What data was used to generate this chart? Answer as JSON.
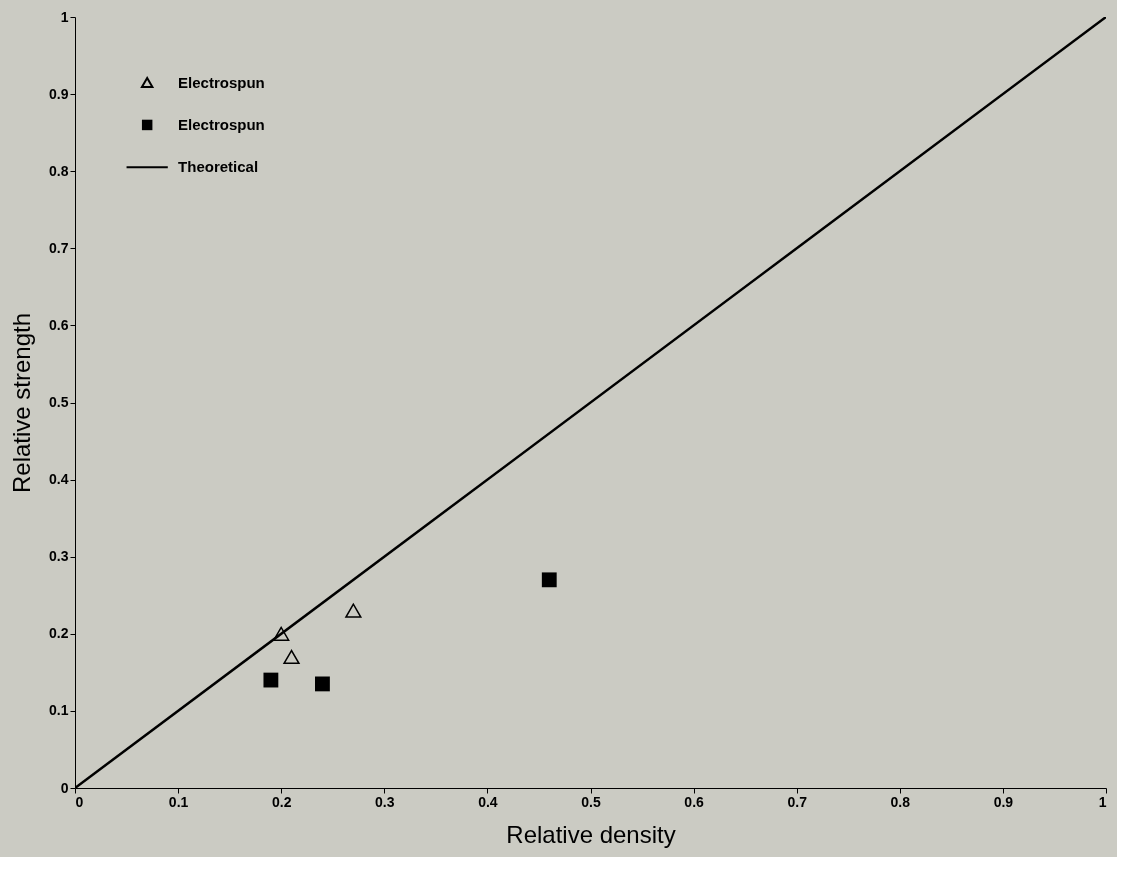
{
  "chart_data": {
    "type": "scatter",
    "xlabel": "Relative density",
    "ylabel": "Relative strength",
    "xlim": [
      0,
      1
    ],
    "ylim": [
      0,
      1
    ],
    "xticks": [
      0,
      0.1,
      0.2,
      0.3,
      0.4,
      0.5,
      0.6,
      0.7,
      0.8,
      0.9,
      1
    ],
    "yticks": [
      0,
      0.1,
      0.2,
      0.3,
      0.4,
      0.5,
      0.6,
      0.7,
      0.8,
      0.9,
      1
    ],
    "grid": false,
    "legend": "top left",
    "series": [
      {
        "name": "Electrospun",
        "marker": "triangle",
        "color": "#000000",
        "x": [
          0.2,
          0.21,
          0.27
        ],
        "values": [
          0.2,
          0.17,
          0.23
        ]
      },
      {
        "name": "Electrospun",
        "marker": "square",
        "color": "#000000",
        "x": [
          0.19,
          0.24,
          0.46
        ],
        "values": [
          0.14,
          0.135,
          0.27
        ]
      },
      {
        "name": "Theoretical",
        "type": "line",
        "marker": "none",
        "line_style": "solid",
        "color": "#000000",
        "x": [
          0,
          1
        ],
        "values": [
          0,
          1
        ]
      }
    ]
  }
}
